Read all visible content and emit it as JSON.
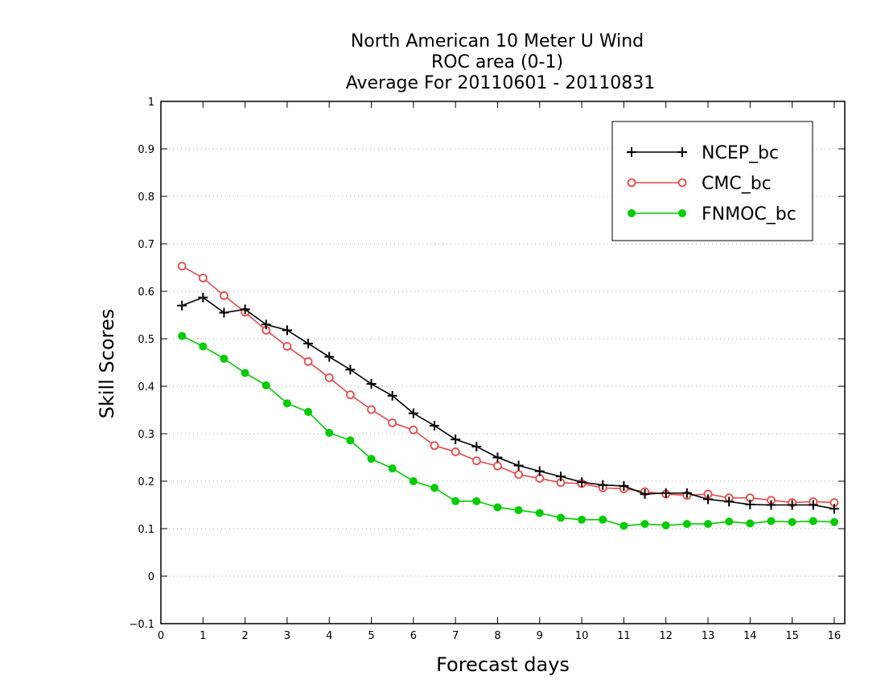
{
  "chart_data": {
    "type": "line",
    "title_lines": [
      "North American 10 Meter U Wind",
      "ROC area (0-1)",
      "Average For 20110601 - 20110831"
    ],
    "xlabel": "Forecast days",
    "ylabel": "Skill Scores",
    "xlim": [
      0,
      16.25
    ],
    "ylim": [
      -0.1,
      1
    ],
    "xticks": [
      0,
      1,
      2,
      3,
      4,
      5,
      6,
      7,
      8,
      9,
      10,
      11,
      12,
      13,
      14,
      15,
      16
    ],
    "yticks": [
      -0.1,
      0,
      0.1,
      0.2,
      0.3,
      0.4,
      0.5,
      0.6,
      0.7,
      0.8,
      0.9,
      1
    ],
    "xtick_labels": [
      "0",
      "1",
      "2",
      "3",
      "4",
      "5",
      "6",
      "7",
      "8",
      "9",
      "10",
      "11",
      "12",
      "13",
      "14",
      "15",
      "16"
    ],
    "ytick_labels": [
      "−0.1",
      "0",
      "0.1",
      "0.2",
      "0.3",
      "0.4",
      "0.5",
      "0.6",
      "0.7",
      "0.8",
      "0.9",
      "1"
    ],
    "grid": "horizontal dotted",
    "legend_position": "top-right",
    "x": [
      0.5,
      1,
      1.5,
      2,
      2.5,
      3,
      3.5,
      4,
      4.5,
      5,
      5.5,
      6,
      6.5,
      7,
      7.5,
      8,
      8.5,
      9,
      9.5,
      10,
      10.5,
      11,
      11.5,
      12,
      12.5,
      13,
      13.5,
      14,
      14.5,
      15,
      15.5,
      16
    ],
    "series": [
      {
        "name": "NCEP_bc",
        "color": "#000000",
        "marker": "plus",
        "values": [
          0.57,
          0.587,
          0.555,
          0.562,
          0.53,
          0.518,
          0.49,
          0.462,
          0.435,
          0.405,
          0.38,
          0.343,
          0.317,
          0.288,
          0.273,
          0.25,
          0.233,
          0.221,
          0.21,
          0.198,
          0.192,
          0.19,
          0.173,
          0.175,
          0.175,
          0.162,
          0.157,
          0.151,
          0.15,
          0.15,
          0.15,
          0.142
        ]
      },
      {
        "name": "CMC_bc",
        "color": "#e8484a",
        "marker": "open-circle",
        "values": [
          0.653,
          0.628,
          0.591,
          0.556,
          0.518,
          0.484,
          0.452,
          0.418,
          0.382,
          0.351,
          0.323,
          0.308,
          0.275,
          0.262,
          0.243,
          0.232,
          0.214,
          0.206,
          0.197,
          0.195,
          0.186,
          0.184,
          0.178,
          0.173,
          0.17,
          0.173,
          0.165,
          0.165,
          0.16,
          0.155,
          0.157,
          0.155
        ]
      },
      {
        "name": "FNMOC_bc",
        "color": "#00cc00",
        "marker": "filled-circle",
        "values": [
          0.506,
          0.484,
          0.458,
          0.428,
          0.402,
          0.364,
          0.346,
          0.302,
          0.286,
          0.247,
          0.227,
          0.2,
          0.186,
          0.158,
          0.158,
          0.145,
          0.139,
          0.133,
          0.123,
          0.119,
          0.119,
          0.106,
          0.11,
          0.107,
          0.11,
          0.11,
          0.115,
          0.111,
          0.116,
          0.114,
          0.116,
          0.114
        ]
      }
    ]
  }
}
